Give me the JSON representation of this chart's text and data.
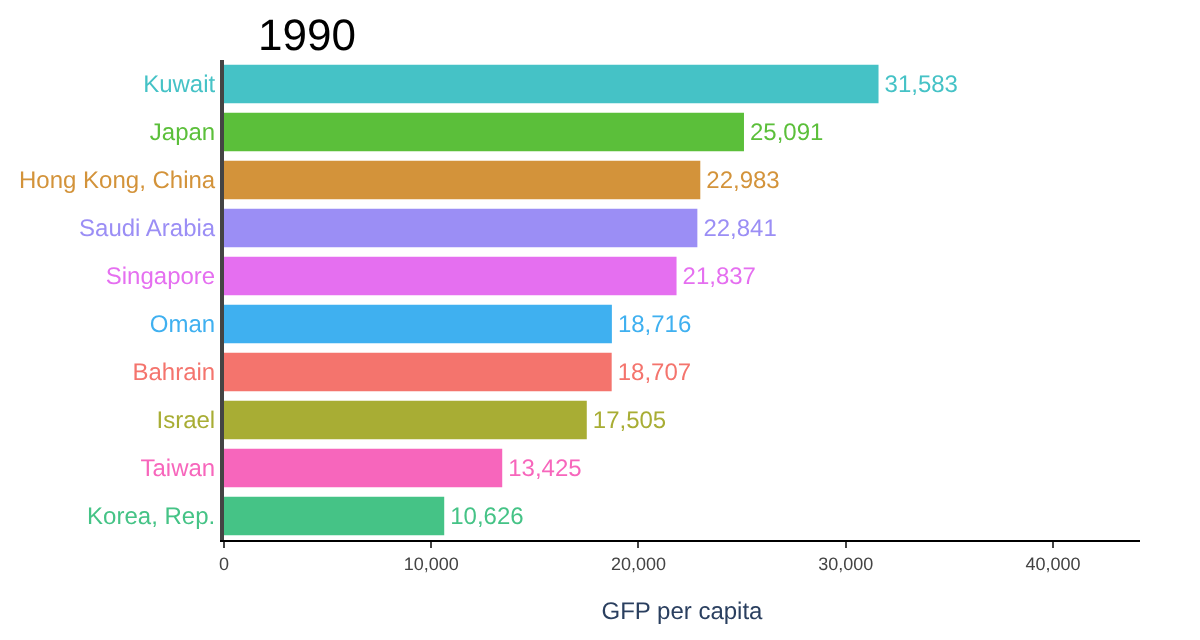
{
  "chart_data": {
    "type": "bar",
    "orientation": "horizontal",
    "title": "1990",
    "xlabel": "GFP per capita",
    "categories": [
      "Kuwait",
      "Japan",
      "Hong Kong, China",
      "Saudi Arabia",
      "Singapore",
      "Oman",
      "Bahrain",
      "Israel",
      "Taiwan",
      "Korea, Rep."
    ],
    "values": [
      31583,
      25091,
      22983,
      22841,
      21837,
      18716,
      18707,
      17505,
      13425,
      10626
    ],
    "colors": [
      "#45c2c6",
      "#5bbf3a",
      "#d3933a",
      "#9b8ef5",
      "#e56ff0",
      "#3fb0f0",
      "#f4746d",
      "#a8ad34",
      "#f766bc",
      "#45c386"
    ],
    "xlim": [
      0,
      44200
    ],
    "xticks": [
      {
        "value": 0,
        "label": "0"
      },
      {
        "value": 10000,
        "label": "10,000"
      },
      {
        "value": 20000,
        "label": "20,000"
      },
      {
        "value": 30000,
        "label": "30,000"
      },
      {
        "value": 40000,
        "label": "40,000"
      }
    ],
    "value_labels": [
      "31,583",
      "25,091",
      "22,983",
      "22,841",
      "21,837",
      "18,716",
      "18,707",
      "17,505",
      "13,425",
      "10,626"
    ],
    "tick_labels": [
      "x",
      "y"
    ]
  }
}
